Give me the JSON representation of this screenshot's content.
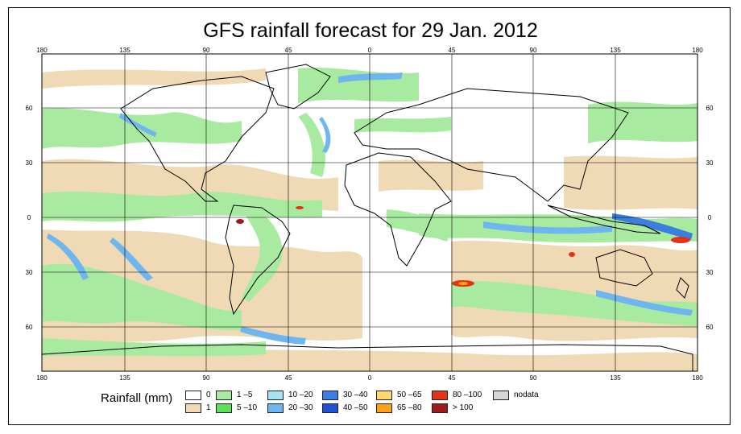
{
  "title": "GFS rainfall forecast for 29 Jan. 2012",
  "axes": {
    "lon_top": [
      "180",
      "135",
      "90",
      "45",
      "0",
      "45",
      "90",
      "135",
      "180"
    ],
    "lon_bottom": [
      "180",
      "135",
      "90",
      "45",
      "0",
      "45",
      "90",
      "135",
      "180"
    ],
    "lat_left": [
      "60",
      "30",
      "0",
      "30",
      "60"
    ],
    "lat_right": [
      "60",
      "30",
      "0",
      "30",
      "60"
    ]
  },
  "legend": {
    "title": "Rainfall (mm)",
    "items": [
      {
        "label": "0",
        "color": "#ffffff"
      },
      {
        "label": "1",
        "color": "#f0d9b5"
      },
      {
        "label": "1 –5",
        "color": "#a8eba0"
      },
      {
        "label": "5 –10",
        "color": "#5ee05a"
      },
      {
        "label": "10 –20",
        "color": "#a6e3f5"
      },
      {
        "label": "20 –30",
        "color": "#6fb6f0"
      },
      {
        "label": "30 –40",
        "color": "#3a7ee0"
      },
      {
        "label": "40 –50",
        "color": "#1f52d6"
      },
      {
        "label": "50 –65",
        "color": "#ffd870"
      },
      {
        "label": "65 –80",
        "color": "#ff9f1a"
      },
      {
        "label": "80 –100",
        "color": "#e53216"
      },
      {
        "label": "> 100",
        "color": "#9e1a1a"
      },
      {
        "label": "nodata",
        "color": "#d6d6d6"
      }
    ]
  }
}
